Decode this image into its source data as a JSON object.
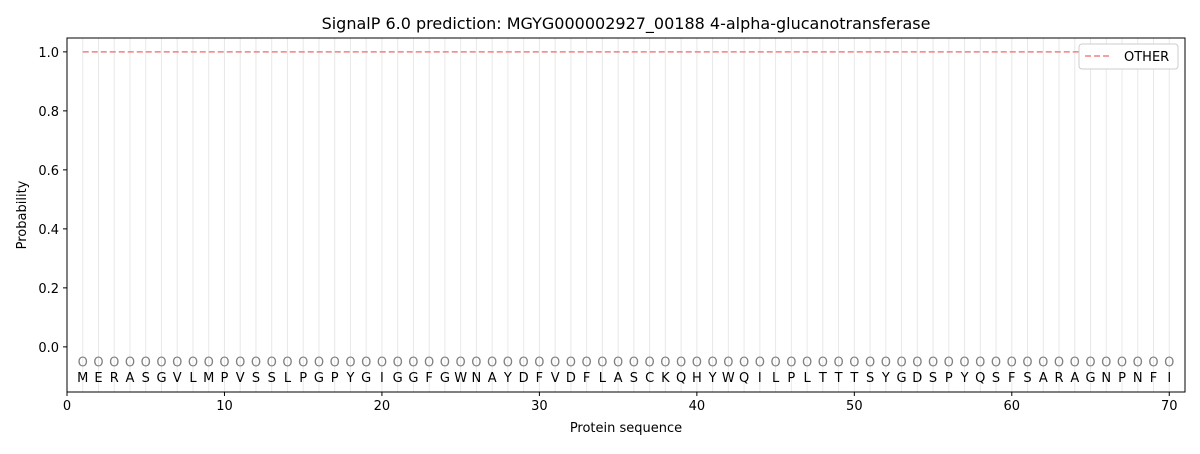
{
  "chart_data": {
    "type": "line",
    "title": "SignalP 6.0 prediction: MGYG000002927_00188 4-alpha-glucanotransferase",
    "xlabel": "Protein sequence",
    "ylabel": "Probability",
    "xlim": [
      0,
      71
    ],
    "ylim": [
      -0.153,
      1.047
    ],
    "xticks": [
      0,
      10,
      20,
      30,
      40,
      50,
      60,
      70
    ],
    "yticks": [
      0.0,
      0.2,
      0.4,
      0.6,
      0.8,
      1.0
    ],
    "ytick_labels": [
      "0.0",
      "0.2",
      "0.4",
      "0.6",
      "0.8",
      "1.0"
    ],
    "grid": "vertical lines at each residue",
    "legend_position": "top-right",
    "sequence": [
      "M",
      "E",
      "R",
      "A",
      "S",
      "G",
      "V",
      "L",
      "M",
      "P",
      "V",
      "S",
      "S",
      "L",
      "P",
      "G",
      "P",
      "Y",
      "G",
      "I",
      "G",
      "G",
      "F",
      "G",
      "W",
      "N",
      "A",
      "Y",
      "D",
      "F",
      "V",
      "D",
      "F",
      "L",
      "A",
      "S",
      "C",
      "K",
      "Q",
      "H",
      "Y",
      "W",
      "Q",
      "I",
      "L",
      "P",
      "L",
      "T",
      "T",
      "T",
      "S",
      "Y",
      "G",
      "D",
      "S",
      "P",
      "Y",
      "Q",
      "S",
      "F",
      "S",
      "A",
      "R",
      "A",
      "G",
      "N",
      "P",
      "N",
      "F",
      "I"
    ],
    "residue_labels": "OOOOOOOOOOOOOOOOOOOOOOOOOOOOOOOOOOOOOOOOOOOOOOOOOOOOOOOOOOOOOOOOOOOOOO",
    "series": [
      {
        "name": "OTHER",
        "color": "#f08080",
        "style": "dashed",
        "x_range": [
          1,
          70
        ],
        "value": 1.0
      }
    ]
  }
}
